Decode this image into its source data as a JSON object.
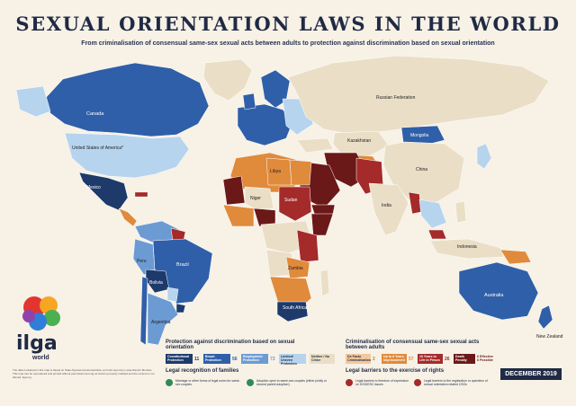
{
  "header": {
    "title": "SEXUAL ORIENTATION LAWS IN THE WORLD",
    "subtitle": "From criminalisation of consensual same-sex sexual acts between adults to protection against discrimination based on sexual orientation"
  },
  "countries": {
    "canada": "Canada",
    "usa": "United States of America*",
    "mexico": "Mexico",
    "brazil": "Brazil",
    "argentina": "Argentina",
    "peru": "Peru",
    "bolivia": "Bolivia",
    "russia": "Russian Federation",
    "china": "China",
    "mongolia": "Mongolia",
    "kazakhstan": "Kazakhstan",
    "india": "India",
    "indonesia": "Indonesia",
    "australia": "Australia",
    "south_africa": "South Africa",
    "new_zealand": "New Zealand",
    "sudan": "Sudan",
    "libya": "Libya",
    "niger": "Niger",
    "zambia": "Zambia"
  },
  "colors": {
    "constitutional": "#1d3a6b",
    "broad": "#2f5fa8",
    "employment": "#6b9bd2",
    "limited": "#b7d4ee",
    "neither": "#eadfc6",
    "de_facto": "#f3c89c",
    "up_to_8": "#e08a3c",
    "ten_to_life": "#a52a2a",
    "death": "#6b1818",
    "ocean": "#f7f1e6",
    "navy": "#1f2a44"
  },
  "legend": {
    "protection_title": "Protection against discrimination based on sexual orientation",
    "criminalisation_title": "Criminalisation of consensual same-sex sexual acts between adults",
    "protection_items": [
      {
        "label": "Constitutional Protection",
        "count": "11"
      },
      {
        "label": "Broad Protection",
        "count": "56"
      },
      {
        "label": "Employment Protection",
        "count": "73"
      },
      {
        "label": "Limited/ Uneven Protection",
        "count": ""
      }
    ],
    "neither_label": "Neither / No Crime",
    "criminalisation_items": [
      {
        "label": "De Facto Criminalisation",
        "count": "2"
      },
      {
        "label": "Up to 8 Years Imprisonment",
        "count": "57"
      },
      {
        "label": "10 Years to Life in Prison",
        "count": "26"
      },
      {
        "label": "Death Penalty",
        "count": "6"
      }
    ],
    "death_sub": "6 Effective\n6 Possible",
    "families_title": "Legal recognition of families",
    "families_items": [
      "Marriage or other forms of legal union for same-sex couples",
      "Adoption open to same-sex couples (either jointly or second parent adoption)"
    ],
    "barriers_title": "Legal barriers to the exercise of rights",
    "barriers_items": [
      "Legal barriers to freedom of expression on SOGIESC issues",
      "Legal barriers to the registration or operation of sexual orientation related CSOs"
    ]
  },
  "logo": {
    "text": "ilga",
    "sub": "world"
  },
  "date_label": "DECEMBER 2019",
  "footnote": "The data contained in this map is based on State-Sponsored Homophobia, an ILGA report by Lucas Ramón Mendos. This map can be reproduced and printed without permission as long as ILGA is properly credited and the content is not altered. ilga.org"
}
